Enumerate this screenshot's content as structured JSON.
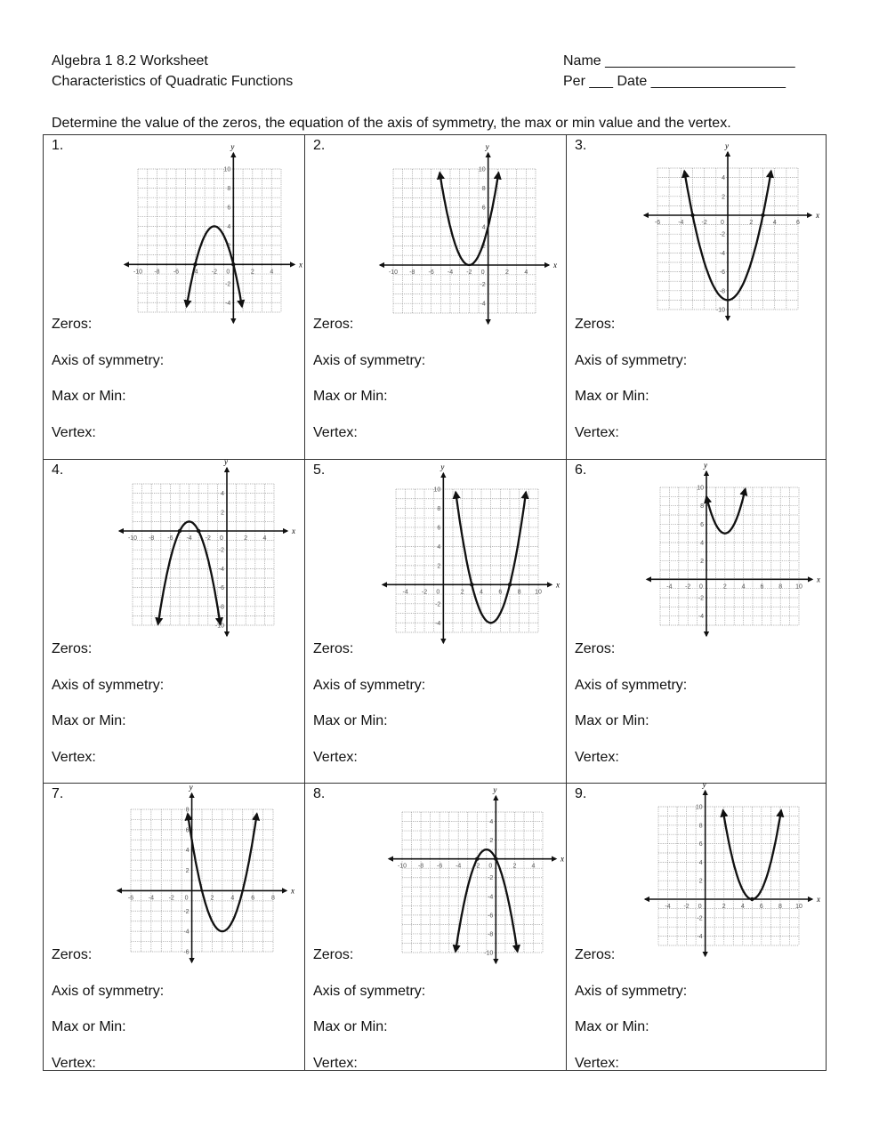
{
  "header": {
    "title": "Algebra 1 8.2 Worksheet",
    "subtitle": "Characteristics of Quadratic Functions",
    "name_field": "Name ________________________",
    "per_date_field": "Per ___ Date _________________",
    "instructions": "Determine the value of the zeros, the equation of the axis of symmetry, the max or min value and the vertex."
  },
  "answer_labels": {
    "zeros": "Zeros:",
    "axis": "Axis of symmetry:",
    "maxmin": "Max or Min:",
    "vertex": "Vertex:"
  },
  "axis_letters": {
    "x": "x",
    "y": "y"
  },
  "chart_data": [
    {
      "type": "line",
      "number": "1.",
      "xlim": [
        -10,
        5
      ],
      "ylim": [
        -5,
        10
      ],
      "xticks": [
        "-10",
        "-8",
        "-6",
        "-4",
        "-2",
        "0",
        "2",
        "4"
      ],
      "yticks": [
        "10",
        "8",
        "6",
        "4",
        "2",
        "-2",
        "-4"
      ],
      "grid": true,
      "parabola": {
        "a": -1,
        "vertex": [
          -2,
          4
        ],
        "x_range": [
          -4.9,
          0.9
        ]
      },
      "marked_points": [
        [
          -4,
          0
        ],
        [
          0,
          0
        ]
      ]
    },
    {
      "type": "line",
      "number": "2.",
      "xlim": [
        -10,
        5
      ],
      "ylim": [
        -5,
        10
      ],
      "xticks": [
        "-10",
        "-8",
        "-6",
        "-4",
        "-2",
        "0",
        "2",
        "4"
      ],
      "yticks": [
        "10",
        "8",
        "6",
        "4",
        "2",
        "-2",
        "-4"
      ],
      "grid": true,
      "parabola": {
        "a": 1,
        "vertex": [
          -2,
          0
        ],
        "x_range": [
          -5.1,
          1.1
        ]
      },
      "marked_points": []
    },
    {
      "type": "line",
      "number": "3.",
      "xlim": [
        -6,
        6
      ],
      "ylim": [
        -10,
        5
      ],
      "xticks": [
        "-6",
        "-4",
        "-2",
        "0",
        "2",
        "4",
        "6"
      ],
      "yticks": [
        "4",
        "2",
        "-2",
        "-4",
        "-6",
        "-8",
        "-10"
      ],
      "grid": true,
      "parabola": {
        "a": 1,
        "vertex": [
          0,
          -9
        ],
        "x_range": [
          -3.7,
          3.7
        ]
      },
      "marked_points": [
        [
          -3,
          0
        ],
        [
          3,
          0
        ]
      ]
    },
    {
      "type": "line",
      "number": "4.",
      "xlim": [
        -10,
        5
      ],
      "ylim": [
        -10,
        5
      ],
      "xticks": [
        "-10",
        "-8",
        "-6",
        "-4",
        "-2",
        "0",
        "2",
        "4"
      ],
      "yticks": [
        "4",
        "2",
        "-2",
        "-4",
        "-6",
        "-8",
        "-10"
      ],
      "grid": true,
      "parabola": {
        "a": -1,
        "vertex": [
          -4,
          1
        ],
        "x_range": [
          -7.3,
          -0.7
        ]
      },
      "marked_points": [
        [
          -5,
          0
        ],
        [
          -3,
          0
        ]
      ]
    },
    {
      "type": "line",
      "number": "5.",
      "xlim": [
        -5,
        10
      ],
      "ylim": [
        -5,
        10
      ],
      "xticks": [
        "-4",
        "-2",
        "0",
        "2",
        "4",
        "6",
        "8",
        "10"
      ],
      "yticks": [
        "10",
        "8",
        "6",
        "4",
        "2",
        "-2",
        "-4"
      ],
      "grid": true,
      "parabola": {
        "a": 1,
        "vertex": [
          5,
          -4
        ],
        "x_range": [
          1.3,
          8.7
        ]
      },
      "marked_points": [
        [
          3,
          0
        ],
        [
          7,
          0
        ]
      ]
    },
    {
      "type": "line",
      "number": "6.",
      "xlim": [
        -5,
        10
      ],
      "ylim": [
        -5,
        10
      ],
      "xticks": [
        "-4",
        "-2",
        "0",
        "2",
        "4",
        "6",
        "8",
        "10"
      ],
      "yticks": [
        "10",
        "8",
        "6",
        "4",
        "2",
        "-2",
        "-4"
      ],
      "grid": true,
      "parabola": {
        "a": 1,
        "vertex": [
          2,
          5
        ],
        "x_range": [
          0,
          4.2
        ]
      },
      "marked_points": []
    },
    {
      "type": "line",
      "number": "7.",
      "xlim": [
        -6,
        8
      ],
      "ylim": [
        -6,
        8
      ],
      "xticks": [
        "-6",
        "-4",
        "-2",
        "0",
        "2",
        "4",
        "6",
        "8"
      ],
      "yticks": [
        "8",
        "6",
        "4",
        "2",
        "-2",
        "-4",
        "-6"
      ],
      "grid": true,
      "parabola": {
        "a": 1,
        "vertex": [
          3,
          -4
        ],
        "x_range": [
          -0.4,
          6.4
        ]
      },
      "marked_points": []
    },
    {
      "type": "line",
      "number": "8.",
      "xlim": [
        -10,
        5
      ],
      "ylim": [
        -10,
        5
      ],
      "xticks": [
        "-10",
        "-8",
        "-6",
        "-4",
        "-2",
        "0",
        "2",
        "4"
      ],
      "yticks": [
        "4",
        "2",
        "-2",
        "-4",
        "-6",
        "-8",
        "-10"
      ],
      "grid": true,
      "parabola": {
        "a": -1,
        "vertex": [
          -1,
          1
        ],
        "x_range": [
          -4.3,
          2.3
        ]
      },
      "marked_points": [
        [
          -2,
          0
        ],
        [
          0,
          0
        ]
      ]
    },
    {
      "type": "line",
      "number": "9.",
      "xlim": [
        -5,
        10
      ],
      "ylim": [
        -5,
        10
      ],
      "xticks": [
        "-4",
        "-2",
        "0",
        "2",
        "4",
        "6",
        "8",
        "10"
      ],
      "yticks": [
        "10",
        "8",
        "6",
        "4",
        "2",
        "-2",
        "-4"
      ],
      "grid": true,
      "parabola": {
        "a": 1,
        "vertex": [
          5,
          0
        ],
        "x_range": [
          1.9,
          8.1
        ]
      },
      "marked_points": [
        [
          5,
          0
        ]
      ]
    }
  ]
}
